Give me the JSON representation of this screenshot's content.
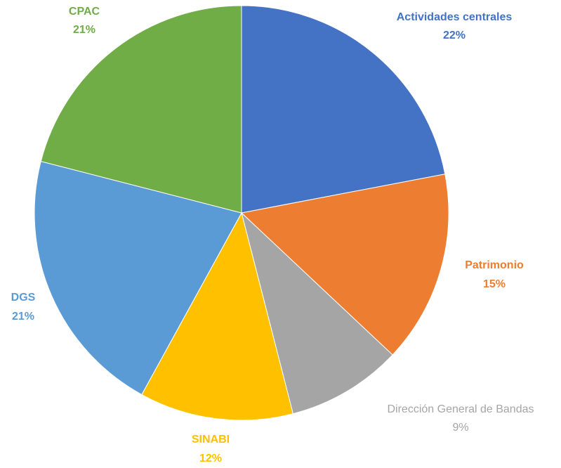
{
  "chart_data": {
    "type": "pie",
    "title": "",
    "start_angle_deg": 0,
    "direction": "clockwise",
    "legend": "none",
    "slices": [
      {
        "label": "Actividades centrales",
        "value": 22,
        "value_label": "22%",
        "color": "#4472C4"
      },
      {
        "label": "Patrimonio",
        "value": 15,
        "value_label": "15%",
        "color": "#ED7D31"
      },
      {
        "label": "Dirección General de Bandas",
        "value": 9,
        "value_label": "9%",
        "color": "#A5A5A5"
      },
      {
        "label": "SINABI",
        "value": 12,
        "value_label": "12%",
        "color": "#FFC000"
      },
      {
        "label": "DGS",
        "value": 21,
        "value_label": "21%",
        "color": "#5B9BD5"
      },
      {
        "label": "CPAC",
        "value": 21,
        "value_label": "21%",
        "color": "#70AD47"
      }
    ]
  }
}
